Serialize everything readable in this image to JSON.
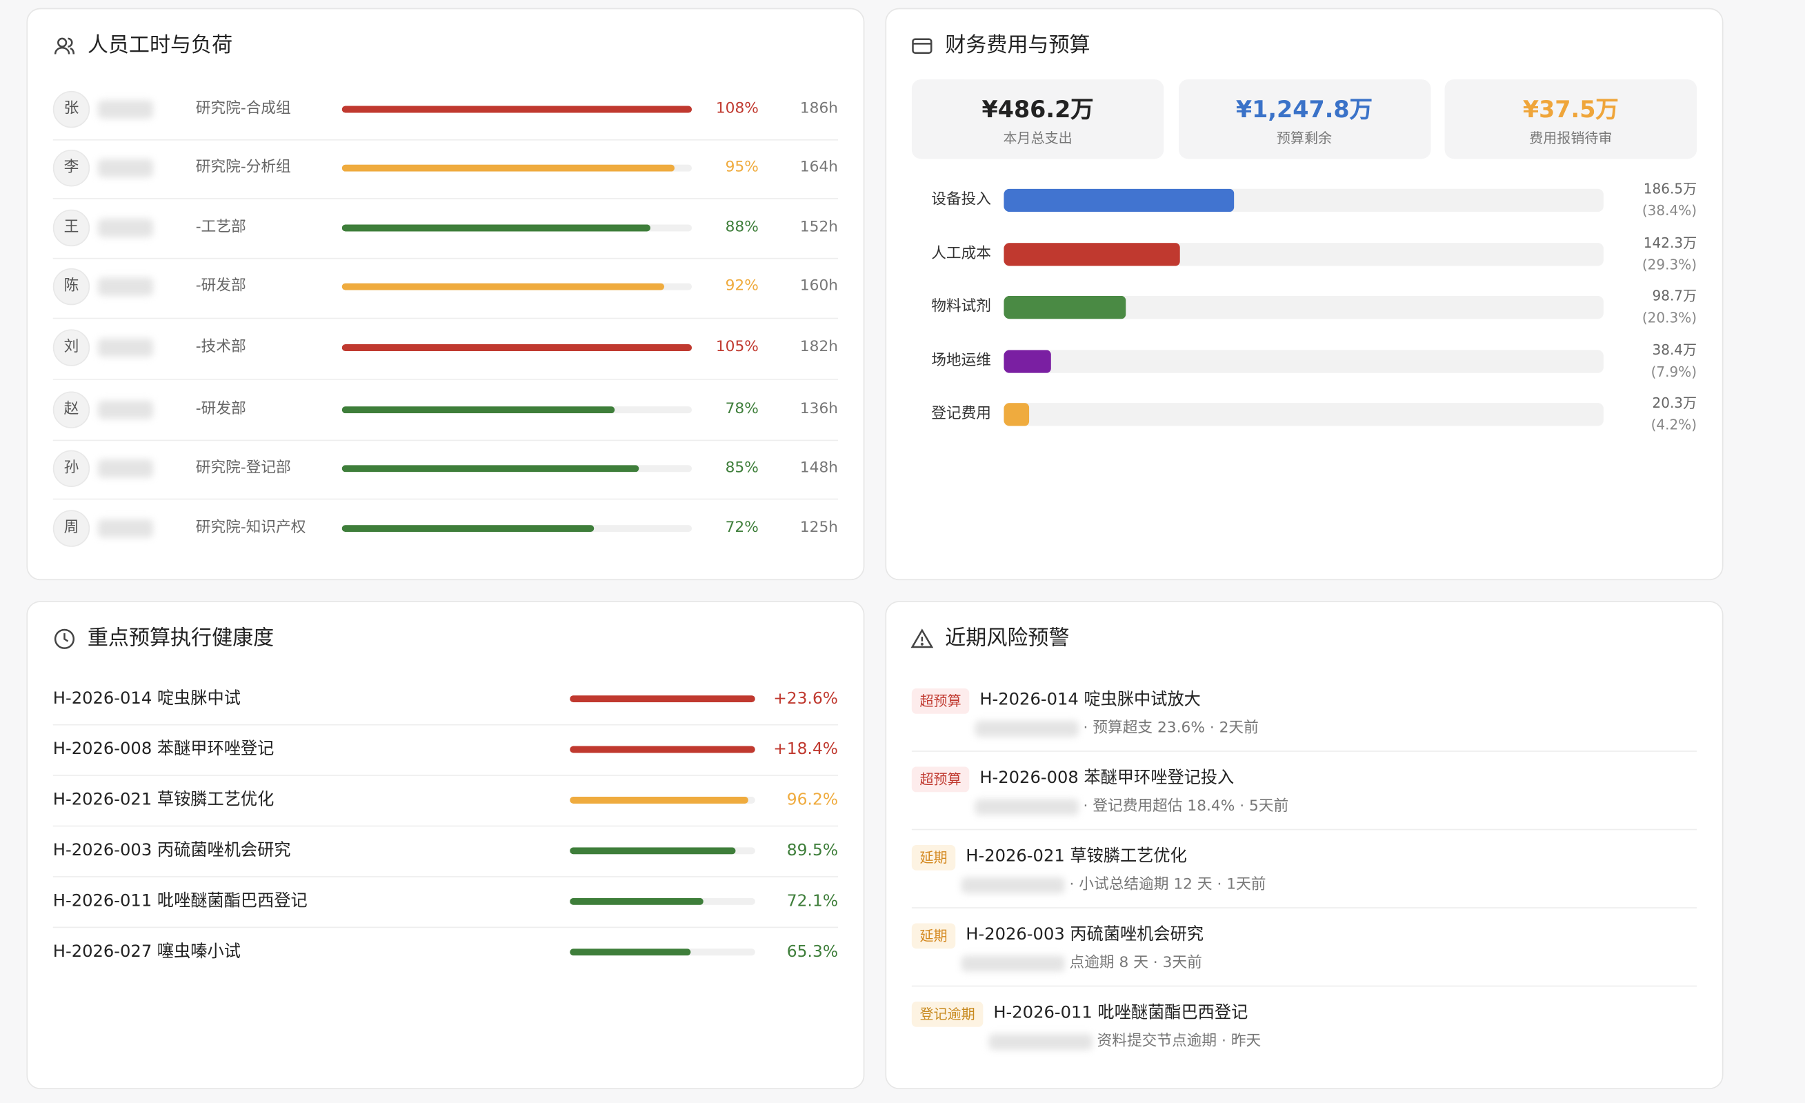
{
  "staff_panel": {
    "title": "人员工时与负荷",
    "rows": [
      {
        "initial": "张",
        "dept": "研究院-合成组",
        "load": {
          "value": 108,
          "label": "108%"
        },
        "hours": "186h",
        "color": "#c0392f"
      },
      {
        "initial": "李",
        "dept": "研究院-分析组",
        "load": {
          "value": 95,
          "label": "95%"
        },
        "hours": "164h",
        "color": "#efab3e"
      },
      {
        "initial": "王",
        "dept": "-工艺部",
        "load": {
          "value": 88,
          "label": "88%"
        },
        "hours": "152h",
        "color": "#3e7e3a"
      },
      {
        "initial": "陈",
        "dept": "-研发部",
        "load": {
          "value": 92,
          "label": "92%"
        },
        "hours": "160h",
        "color": "#efab3e"
      },
      {
        "initial": "刘",
        "dept": "-技术部",
        "load": {
          "value": 105,
          "label": "105%"
        },
        "hours": "182h",
        "color": "#c0392f"
      },
      {
        "initial": "赵",
        "dept": "-研发部",
        "load": {
          "value": 78,
          "label": "78%"
        },
        "hours": "136h",
        "color": "#3e7e3a"
      },
      {
        "initial": "孙",
        "dept": "研究院-登记部",
        "load": {
          "value": 85,
          "label": "85%"
        },
        "hours": "148h",
        "color": "#3e7e3a"
      },
      {
        "initial": "周",
        "dept": "研究院-知识产权",
        "load": {
          "value": 72,
          "label": "72%"
        },
        "hours": "125h",
        "color": "#3e7e3a"
      }
    ]
  },
  "finance_panel": {
    "title": "财务费用与预算",
    "kpis": [
      {
        "value": "¥486.2万",
        "label": "本月总支出",
        "color": "#222222"
      },
      {
        "value": "¥1,247.8万",
        "label": "预算剩余",
        "color": "#3a72c8"
      },
      {
        "value": "¥37.5万",
        "label": "费用报销待审",
        "color": "#efa53a"
      }
    ],
    "items": [
      {
        "name": "设备投入",
        "amount": {
          "value": 186.5,
          "label": "186.5万"
        },
        "share": {
          "value": 38.4,
          "label": "(38.4%)"
        },
        "color": "#4174d0"
      },
      {
        "name": "人工成本",
        "amount": {
          "value": 142.3,
          "label": "142.3万"
        },
        "share": {
          "value": 29.3,
          "label": "(29.3%)"
        },
        "color": "#c0392f"
      },
      {
        "name": "物料试剂",
        "amount": {
          "value": 98.7,
          "label": "98.7万"
        },
        "share": {
          "value": 20.3,
          "label": "(20.3%)"
        },
        "color": "#4a8a44"
      },
      {
        "name": "场地运维",
        "amount": {
          "value": 38.4,
          "label": "38.4万"
        },
        "share": {
          "value": 7.9,
          "label": "(7.9%)"
        },
        "color": "#7a1fa2"
      },
      {
        "name": "登记费用",
        "amount": {
          "value": 20.3,
          "label": "20.3万"
        },
        "share": {
          "value": 4.2,
          "label": "(4.2%)"
        },
        "color": "#efab3e"
      }
    ]
  },
  "budget_panel": {
    "title": "重点预算执行健康度",
    "rows": [
      {
        "project": "H-2026-014 啶虫脒中试",
        "rate": {
          "value": 23.6,
          "label": "+23.6%"
        },
        "over_budget": true,
        "color": "#c0392f"
      },
      {
        "project": "H-2026-008 苯醚甲环唑登记",
        "rate": {
          "value": 18.4,
          "label": "+18.4%"
        },
        "over_budget": true,
        "color": "#c0392f"
      },
      {
        "project": "H-2026-021 草铵膦工艺优化",
        "rate": {
          "value": 96.2,
          "label": "96.2%"
        },
        "over_budget": false,
        "color": "#efab3e"
      },
      {
        "project": "H-2026-003 丙硫菌唑机会研究",
        "rate": {
          "value": 89.5,
          "label": "89.5%"
        },
        "over_budget": false,
        "color": "#3e7e3a"
      },
      {
        "project": "H-2026-011 吡唑醚菌酯巴西登记",
        "rate": {
          "value": 72.1,
          "label": "72.1%"
        },
        "over_budget": false,
        "color": "#3e7e3a"
      },
      {
        "project": "H-2026-027 噻虫嗪小试",
        "rate": {
          "value": 65.3,
          "label": "65.3%"
        },
        "over_budget": false,
        "color": "#3e7e3a"
      }
    ]
  },
  "risk_panel": {
    "title": "近期风险预警",
    "items": [
      {
        "tag": "超预算",
        "title": "H-2026-014 啶虫脒中试放大",
        "detail": "· 预算超支 23.6% · 2天前",
        "tag_bg": "#fdecec",
        "tag_color": "#c0392f"
      },
      {
        "tag": "超预算",
        "title": "H-2026-008 苯醚甲环唑登记投入",
        "detail": "· 登记费用超估 18.4% · 5天前",
        "tag_bg": "#fdecec",
        "tag_color": "#c0392f"
      },
      {
        "tag": "延期",
        "title": "H-2026-021 草铵膦工艺优化",
        "detail": "· 小试总结逾期 12 天 · 1天前",
        "tag_bg": "#fdf3e2",
        "tag_color": "#d4881f"
      },
      {
        "tag": "延期",
        "title": "H-2026-003 丙硫菌唑机会研究",
        "detail": "点逾期 8 天 · 3天前",
        "tag_bg": "#fdf3e2",
        "tag_color": "#d4881f"
      },
      {
        "tag": "登记逾期",
        "title": "H-2026-011 吡唑醚菌酯巴西登记",
        "detail": "资料提交节点逾期 · 昨天",
        "tag_bg": "#fdf3e2",
        "tag_color": "#c88a1f"
      }
    ]
  }
}
